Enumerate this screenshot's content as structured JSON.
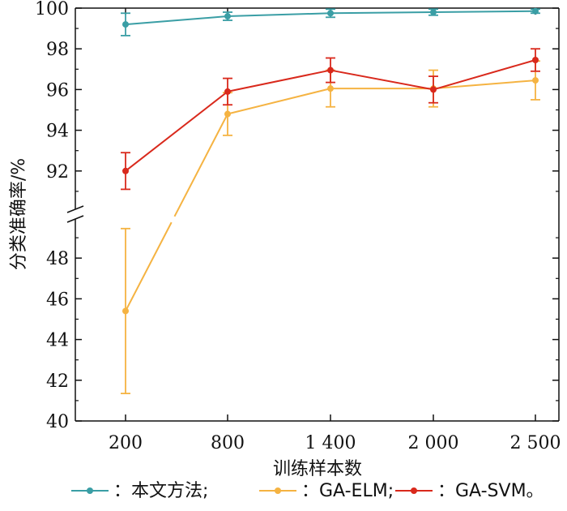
{
  "chart_data": {
    "type": "line",
    "categories": [
      "200",
      "800",
      "1 400",
      "2 000",
      "2 500"
    ],
    "xlabel": "训练样本数",
    "ylabel": "分类准确率/%",
    "ylim_lower": [
      40,
      50
    ],
    "ylim_upper": [
      90,
      100
    ],
    "broken_axis": true,
    "yticks_lower": [
      "40",
      "42",
      "44",
      "46",
      "48"
    ],
    "yticks_upper": [
      "92",
      "94",
      "96",
      "98",
      "100"
    ],
    "grid": false,
    "legend_position": "bottom",
    "series": [
      {
        "name": "：本文方法;",
        "color": "#3a9ea5",
        "values": [
          99.2,
          99.6,
          99.75,
          99.8,
          99.85
        ],
        "errors": [
          0.55,
          0.2,
          0.2,
          0.15,
          0.1
        ]
      },
      {
        "name": "：GA-ELM;",
        "color": "#f5b342",
        "values": [
          45.4,
          94.8,
          96.05,
          96.05,
          96.45
        ],
        "errors": [
          4.05,
          1.05,
          0.9,
          0.9,
          0.95
        ]
      },
      {
        "name": "：GA-SVM。",
        "color": "#d9291c",
        "values": [
          92.0,
          95.9,
          96.95,
          96.0,
          97.45
        ],
        "errors": [
          0.9,
          0.65,
          0.6,
          0.65,
          0.55
        ]
      }
    ]
  }
}
